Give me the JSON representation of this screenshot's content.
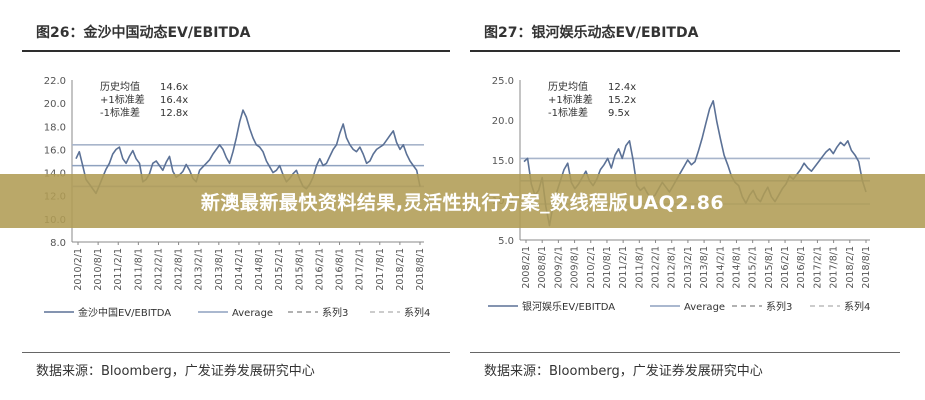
{
  "overlay_text": "新澳最新最快资料结果,灵活性执行方案_数线程版UAQ2.86",
  "colors": {
    "series": "#5b7196",
    "average": "#8ea1bf",
    "band": "#a8b5cb"
  },
  "chart_data": [
    {
      "type": "line",
      "title": "图26：金沙中国动态EV/EBITDA",
      "source": "数据来源：Bloomberg，广发证券发展研究中心",
      "ylim": [
        8.0,
        22.0
      ],
      "yticks": [
        "22.0",
        "20.0",
        "18.0",
        "16.0",
        "14.0",
        "12.0",
        "10.0",
        "8.0"
      ],
      "xticks": [
        "2010/2/1",
        "2010/8/1",
        "2011/2/1",
        "2011/8/1",
        "2012/2/1",
        "2012/8/1",
        "2013/2/1",
        "2013/8/1",
        "2014/2/1",
        "2014/8/1",
        "2015/2/1",
        "2015/8/1",
        "2016/2/1",
        "2016/8/1",
        "2017/2/1",
        "2017/8/1",
        "2018/2/1",
        "2018/8/1"
      ],
      "stats": [
        {
          "label": "历史均值",
          "value": "14.6x"
        },
        {
          "label": "+1标准差",
          "value": "16.4x"
        },
        {
          "label": "-1标准差",
          "value": "12.8x"
        }
      ],
      "average": 14.6,
      "plus1": 16.4,
      "minus1": 12.8,
      "legend": [
        "金沙中国EV/EBITDA",
        "Average",
        "系列3",
        "系列4"
      ],
      "values": [
        15.2,
        15.8,
        14.6,
        13.4,
        13.0,
        12.6,
        12.2,
        12.9,
        13.6,
        14.3,
        14.8,
        15.6,
        16.0,
        16.2,
        15.2,
        14.8,
        15.4,
        15.9,
        15.2,
        14.8,
        13.2,
        13.4,
        13.9,
        14.8,
        15.0,
        14.6,
        14.2,
        14.9,
        15.4,
        14.1,
        13.6,
        13.8,
        14.1,
        14.7,
        14.2,
        13.5,
        13.2,
        14.2,
        14.5,
        14.8,
        15.1,
        15.6,
        16.0,
        16.4,
        16.0,
        15.3,
        14.8,
        15.8,
        17.0,
        18.4,
        19.4,
        18.8,
        17.8,
        17.0,
        16.4,
        16.2,
        15.8,
        15.0,
        14.5,
        14.0,
        14.2,
        14.6,
        13.8,
        13.2,
        13.5,
        13.9,
        14.2,
        13.4,
        12.8,
        12.6,
        13.0,
        13.6,
        14.6,
        15.2,
        14.6,
        14.8,
        15.4,
        16.0,
        16.4,
        17.4,
        18.2,
        17.0,
        16.4,
        16.0,
        15.8,
        16.2,
        15.6,
        14.8,
        15.0,
        15.6,
        16.0,
        16.2,
        16.4,
        16.8,
        17.2,
        17.6,
        16.6,
        16.0,
        16.4,
        15.6,
        15.0,
        14.6,
        14.2,
        12.8
      ]
    },
    {
      "type": "line",
      "title": "图27：银河娱乐动态EV/EBITDA",
      "source": "数据来源：Bloomberg，广发证券发展研究中心",
      "ylim": [
        5.0,
        25.0
      ],
      "yticks": [
        "25.0",
        "20.0",
        "15.0",
        "10.0",
        "5.0"
      ],
      "xticks": [
        "2008/2/1",
        "2008/8/1",
        "2009/2/1",
        "2009/8/1",
        "2010/2/1",
        "2010/8/1",
        "2011/2/1",
        "2011/8/1",
        "2012/2/1",
        "2012/8/1",
        "2013/2/1",
        "2013/8/1",
        "2014/2/1",
        "2014/8/1",
        "2015/2/1",
        "2015/8/1",
        "2016/2/1",
        "2016/8/1",
        "2017/2/1",
        "2017/8/1",
        "2018/2/1",
        "2018/8/1"
      ],
      "stats": [
        {
          "label": "历史均值",
          "value": "12.4x"
        },
        {
          "label": "+1标准差",
          "value": "15.2x"
        },
        {
          "label": "-1标准差",
          "value": "9.5x"
        }
      ],
      "average": 12.4,
      "plus1": 15.2,
      "minus1": 9.5,
      "legend": [
        "银河娱乐EV/EBITDA",
        "Average",
        "系列3",
        "系列4"
      ],
      "values": [
        14.8,
        15.2,
        12.0,
        10.6,
        11.2,
        12.8,
        9.2,
        6.8,
        9.4,
        11.0,
        12.4,
        13.8,
        14.6,
        12.2,
        11.4,
        12.0,
        12.8,
        13.6,
        12.4,
        11.8,
        12.6,
        13.8,
        14.4,
        15.2,
        14.0,
        15.6,
        16.4,
        15.2,
        16.8,
        17.4,
        15.0,
        11.8,
        11.2,
        11.6,
        10.8,
        10.2,
        10.6,
        11.4,
        12.2,
        11.6,
        11.0,
        11.8,
        12.6,
        13.4,
        14.2,
        15.0,
        14.4,
        14.8,
        16.2,
        17.8,
        19.6,
        21.4,
        22.4,
        19.8,
        17.6,
        15.6,
        14.4,
        13.0,
        12.2,
        11.8,
        10.4,
        9.6,
        10.6,
        11.2,
        10.2,
        9.8,
        10.8,
        11.6,
        10.4,
        9.8,
        10.6,
        11.4,
        12.0,
        13.0,
        12.6,
        13.2,
        13.8,
        14.6,
        14.0,
        13.6,
        14.2,
        14.8,
        15.4,
        16.0,
        16.4,
        15.8,
        16.6,
        17.2,
        16.8,
        17.4,
        16.2,
        15.6,
        14.8,
        12.4,
        11.0
      ]
    }
  ]
}
